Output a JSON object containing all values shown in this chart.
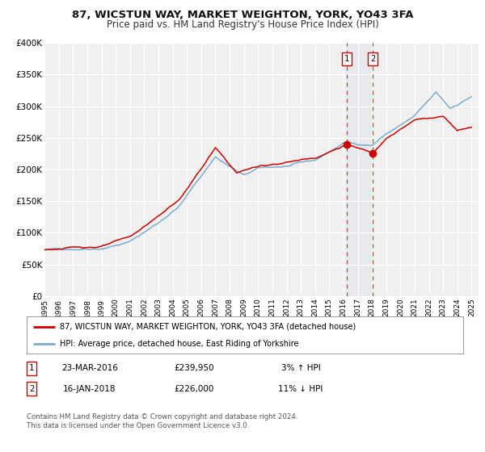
{
  "title": "87, WICSTUN WAY, MARKET WEIGHTON, YORK, YO43 3FA",
  "subtitle": "Price paid vs. HM Land Registry's House Price Index (HPI)",
  "ylim": [
    0,
    400000
  ],
  "yticks": [
    0,
    50000,
    100000,
    150000,
    200000,
    250000,
    300000,
    350000,
    400000
  ],
  "ytick_labels": [
    "£0",
    "£50K",
    "£100K",
    "£150K",
    "£200K",
    "£250K",
    "£300K",
    "£350K",
    "£400K"
  ],
  "xlim_start": 1995.0,
  "xlim_end": 2025.5,
  "red_line_color": "#cc0000",
  "blue_line_color": "#7aacce",
  "marker1_x": 2016.22,
  "marker1_y": 239950,
  "marker2_x": 2018.05,
  "marker2_y": 226000,
  "vline1_x": 2016.22,
  "vline2_x": 2018.05,
  "legend_label_red": "87, WICSTUN WAY, MARKET WEIGHTON, YORK, YO43 3FA (detached house)",
  "legend_label_blue": "HPI: Average price, detached house, East Riding of Yorkshire",
  "table_row1": [
    "1",
    "23-MAR-2016",
    "£239,950",
    "3% ↑ HPI"
  ],
  "table_row2": [
    "2",
    "16-JAN-2018",
    "£226,000",
    "11% ↓ HPI"
  ],
  "footer": "Contains HM Land Registry data © Crown copyright and database right 2024.\nThis data is licensed under the Open Government Licence v3.0.",
  "background_color": "#ffffff",
  "plot_bg_color": "#f0f0f0",
  "grid_color": "#ffffff",
  "title_fontsize": 9.5,
  "subtitle_fontsize": 8.5,
  "hpi_waypoints_x": [
    1995,
    1997,
    1999,
    2001,
    2003,
    2004.5,
    2007,
    2009,
    2010,
    2012,
    2014,
    2016,
    2018,
    2019,
    2021,
    2022.5,
    2023.5,
    2025
  ],
  "hpi_waypoints_y": [
    73000,
    75000,
    79000,
    90000,
    120000,
    148000,
    225000,
    195000,
    205000,
    208000,
    215000,
    242000,
    240000,
    258000,
    285000,
    320000,
    295000,
    315000
  ],
  "red_waypoints_x": [
    1995,
    1997,
    1999,
    2001,
    2003,
    2004.5,
    2007,
    2008.5,
    2009.5,
    2012,
    2014,
    2016.22,
    2018.05,
    2019,
    2021,
    2023,
    2024,
    2025
  ],
  "red_waypoints_y": [
    73000,
    76000,
    79000,
    92000,
    125000,
    152000,
    232000,
    192000,
    200000,
    210000,
    218000,
    239950,
    226000,
    252000,
    280000,
    287000,
    265000,
    272000
  ],
  "hpi_noise_seed": 42,
  "red_noise_seed": 123,
  "noise_scale_hpi": 1200,
  "noise_scale_red": 1100
}
